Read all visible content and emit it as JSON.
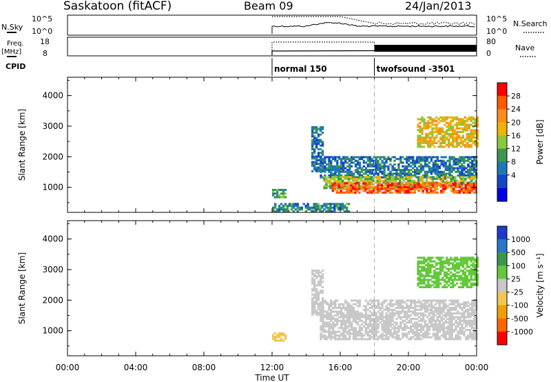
{
  "header": {
    "station": "Saskatoon (fitACF)",
    "beam": "Beam 09",
    "date": "24/Jan/2013"
  },
  "param_panels": {
    "nsky_label": "N.Sky",
    "nsky_ticks": [
      "10^5",
      "10^0"
    ],
    "nsearch_label": "N.Search",
    "nsearch_ticks": [
      "10^5",
      "10^0"
    ],
    "freq_label_1": "Freq.",
    "freq_label_2": "[MHz]",
    "freq_ticks": [
      "18",
      "8"
    ],
    "nave_label": "Nave",
    "nave_ticks": [
      "80",
      "0"
    ],
    "cpid_label": "CPID",
    "cpid_segments": [
      {
        "start": 12.0,
        "label": "normal 150"
      },
      {
        "start": 18.0,
        "label": "twofsound -3501"
      }
    ]
  },
  "chart_data": [
    {
      "type": "heatmap",
      "name": "power",
      "ylabel": "Slant Range [km]",
      "xlabel": "Time UT",
      "xlim": [
        0,
        24
      ],
      "ylim": [
        180,
        4600
      ],
      "yticks": [
        "1000",
        "2000",
        "3000",
        "4000"
      ],
      "xticks": [
        "00:00",
        "04:00",
        "08:00",
        "12:00",
        "16:00",
        "20:00",
        "00:00"
      ],
      "colorbar": {
        "label": "Power [dB]",
        "ticks": [
          "28",
          "24",
          "20",
          "16",
          "12",
          "8",
          "4"
        ],
        "colors": [
          "#ff0000",
          "#ff5a00",
          "#ff8c1a",
          "#f0b400",
          "#8cc83c",
          "#3c9650",
          "#1e78b4",
          "#1446c8",
          "#0000e6"
        ]
      },
      "regions": [
        {
          "t0": 12.0,
          "t1": 12.8,
          "r0": 650,
          "r1": 900,
          "level": 10
        },
        {
          "t0": 12.0,
          "t1": 16.5,
          "r0": 190,
          "r1": 450,
          "level": 8
        },
        {
          "t0": 14.3,
          "t1": 15.0,
          "r0": 1500,
          "r1": 3000,
          "level": 5
        },
        {
          "t0": 14.8,
          "t1": 24.0,
          "r0": 1300,
          "r1": 2000,
          "level": 6
        },
        {
          "t0": 15.0,
          "t1": 24.0,
          "r0": 950,
          "r1": 1350,
          "level": 14
        },
        {
          "t0": 15.5,
          "t1": 24.0,
          "r0": 800,
          "r1": 1150,
          "level": 26
        },
        {
          "t0": 20.5,
          "t1": 24.0,
          "r0": 2300,
          "r1": 3300,
          "level": 18
        }
      ]
    },
    {
      "type": "heatmap",
      "name": "velocity",
      "ylabel": "Slant Range [km]",
      "xlabel": "Time UT",
      "xlim": [
        0,
        24
      ],
      "ylim": [
        180,
        4600
      ],
      "yticks": [
        "1000",
        "2000",
        "3000",
        "4000"
      ],
      "xticks": [
        "00:00",
        "04:00",
        "08:00",
        "12:00",
        "16:00",
        "20:00",
        "00:00"
      ],
      "colorbar": {
        "label": "Velocity [m s⁻¹]",
        "ticks": [
          "1000",
          "500",
          "100",
          "25",
          "-25",
          "-100",
          "-500",
          "-1000"
        ],
        "colors": [
          "#1e3cc8",
          "#2878c8",
          "#3c9650",
          "#64c83c",
          "#c8c8c8",
          "#f0c850",
          "#f0a000",
          "#ff6400",
          "#ff0000"
        ]
      },
      "regions": [
        {
          "t0": 12.0,
          "t1": 12.8,
          "r0": 650,
          "r1": 900,
          "level": -60
        },
        {
          "t0": 14.3,
          "t1": 15.0,
          "r0": 1500,
          "r1": 3000,
          "level": 0
        },
        {
          "t0": 14.8,
          "t1": 24.0,
          "r0": 700,
          "r1": 2000,
          "level": 0
        },
        {
          "t0": 20.5,
          "t1": 24.0,
          "r0": 2400,
          "r1": 3400,
          "level": 80
        }
      ]
    }
  ]
}
